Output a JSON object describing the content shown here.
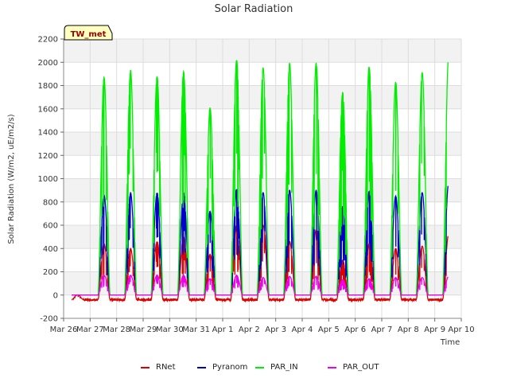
{
  "chart_data": {
    "type": "line",
    "title": "Solar Radiation",
    "xlabel": "Time",
    "ylabel": "Solar Radiation (W/m2, uE/m2/s)",
    "station_label": "TW_met",
    "ylim": [
      -200,
      2200
    ],
    "y_ticks": [
      "-200",
      "0",
      "200",
      "400",
      "600",
      "800",
      "1000",
      "1200",
      "1400",
      "1600",
      "1800",
      "2000",
      "2200"
    ],
    "x_ticks": [
      "Mar 26",
      "Mar 27",
      "Mar 28",
      "Mar 29",
      "Mar 30",
      "Mar 31",
      "Apr 1",
      "Apr 2",
      "Apr 3",
      "Apr 4",
      "Apr 5",
      "Apr 6",
      "Apr 7",
      "Apr 8",
      "Apr 9",
      "Apr 10"
    ],
    "xlim_days": [
      0,
      15
    ],
    "grid": true,
    "legend_position": "bottom",
    "days": [
      "Mar 26",
      "Mar 27",
      "Mar 28",
      "Mar 29",
      "Mar 30",
      "Mar 31",
      "Apr 1",
      "Apr 2",
      "Apr 3",
      "Apr 4",
      "Apr 5",
      "Apr 6",
      "Apr 7",
      "Apr 8",
      "Apr 9"
    ],
    "series": [
      {
        "name": "RNet",
        "color": "#dd0000",
        "daily_peak": [
          440,
          400,
          460,
          500,
          350,
          600,
          600,
          460,
          560,
          300,
          440,
          400,
          420,
          520
        ],
        "night_value": -40
      },
      {
        "name": "Pyranom",
        "color": "#0000cc",
        "daily_peak": [
          860,
          880,
          880,
          880,
          720,
          910,
          880,
          900,
          900,
          760,
          890,
          850,
          880,
          960
        ],
        "night_value": 0
      },
      {
        "name": "PAR_IN",
        "color": "#00ee00",
        "daily_peak": [
          1870,
          1930,
          1880,
          1920,
          1610,
          2020,
          1950,
          1990,
          1990,
          1740,
          1960,
          1830,
          1910,
          2050
        ],
        "night_value": 0
      },
      {
        "name": "PAR_OUT",
        "color": "#ee00ee",
        "daily_peak": [
          170,
          170,
          170,
          170,
          140,
          170,
          150,
          160,
          160,
          130,
          140,
          150,
          150,
          160
        ],
        "night_value": 0
      }
    ],
    "data_days_start": 0.3,
    "data_days_end": 14.5
  }
}
